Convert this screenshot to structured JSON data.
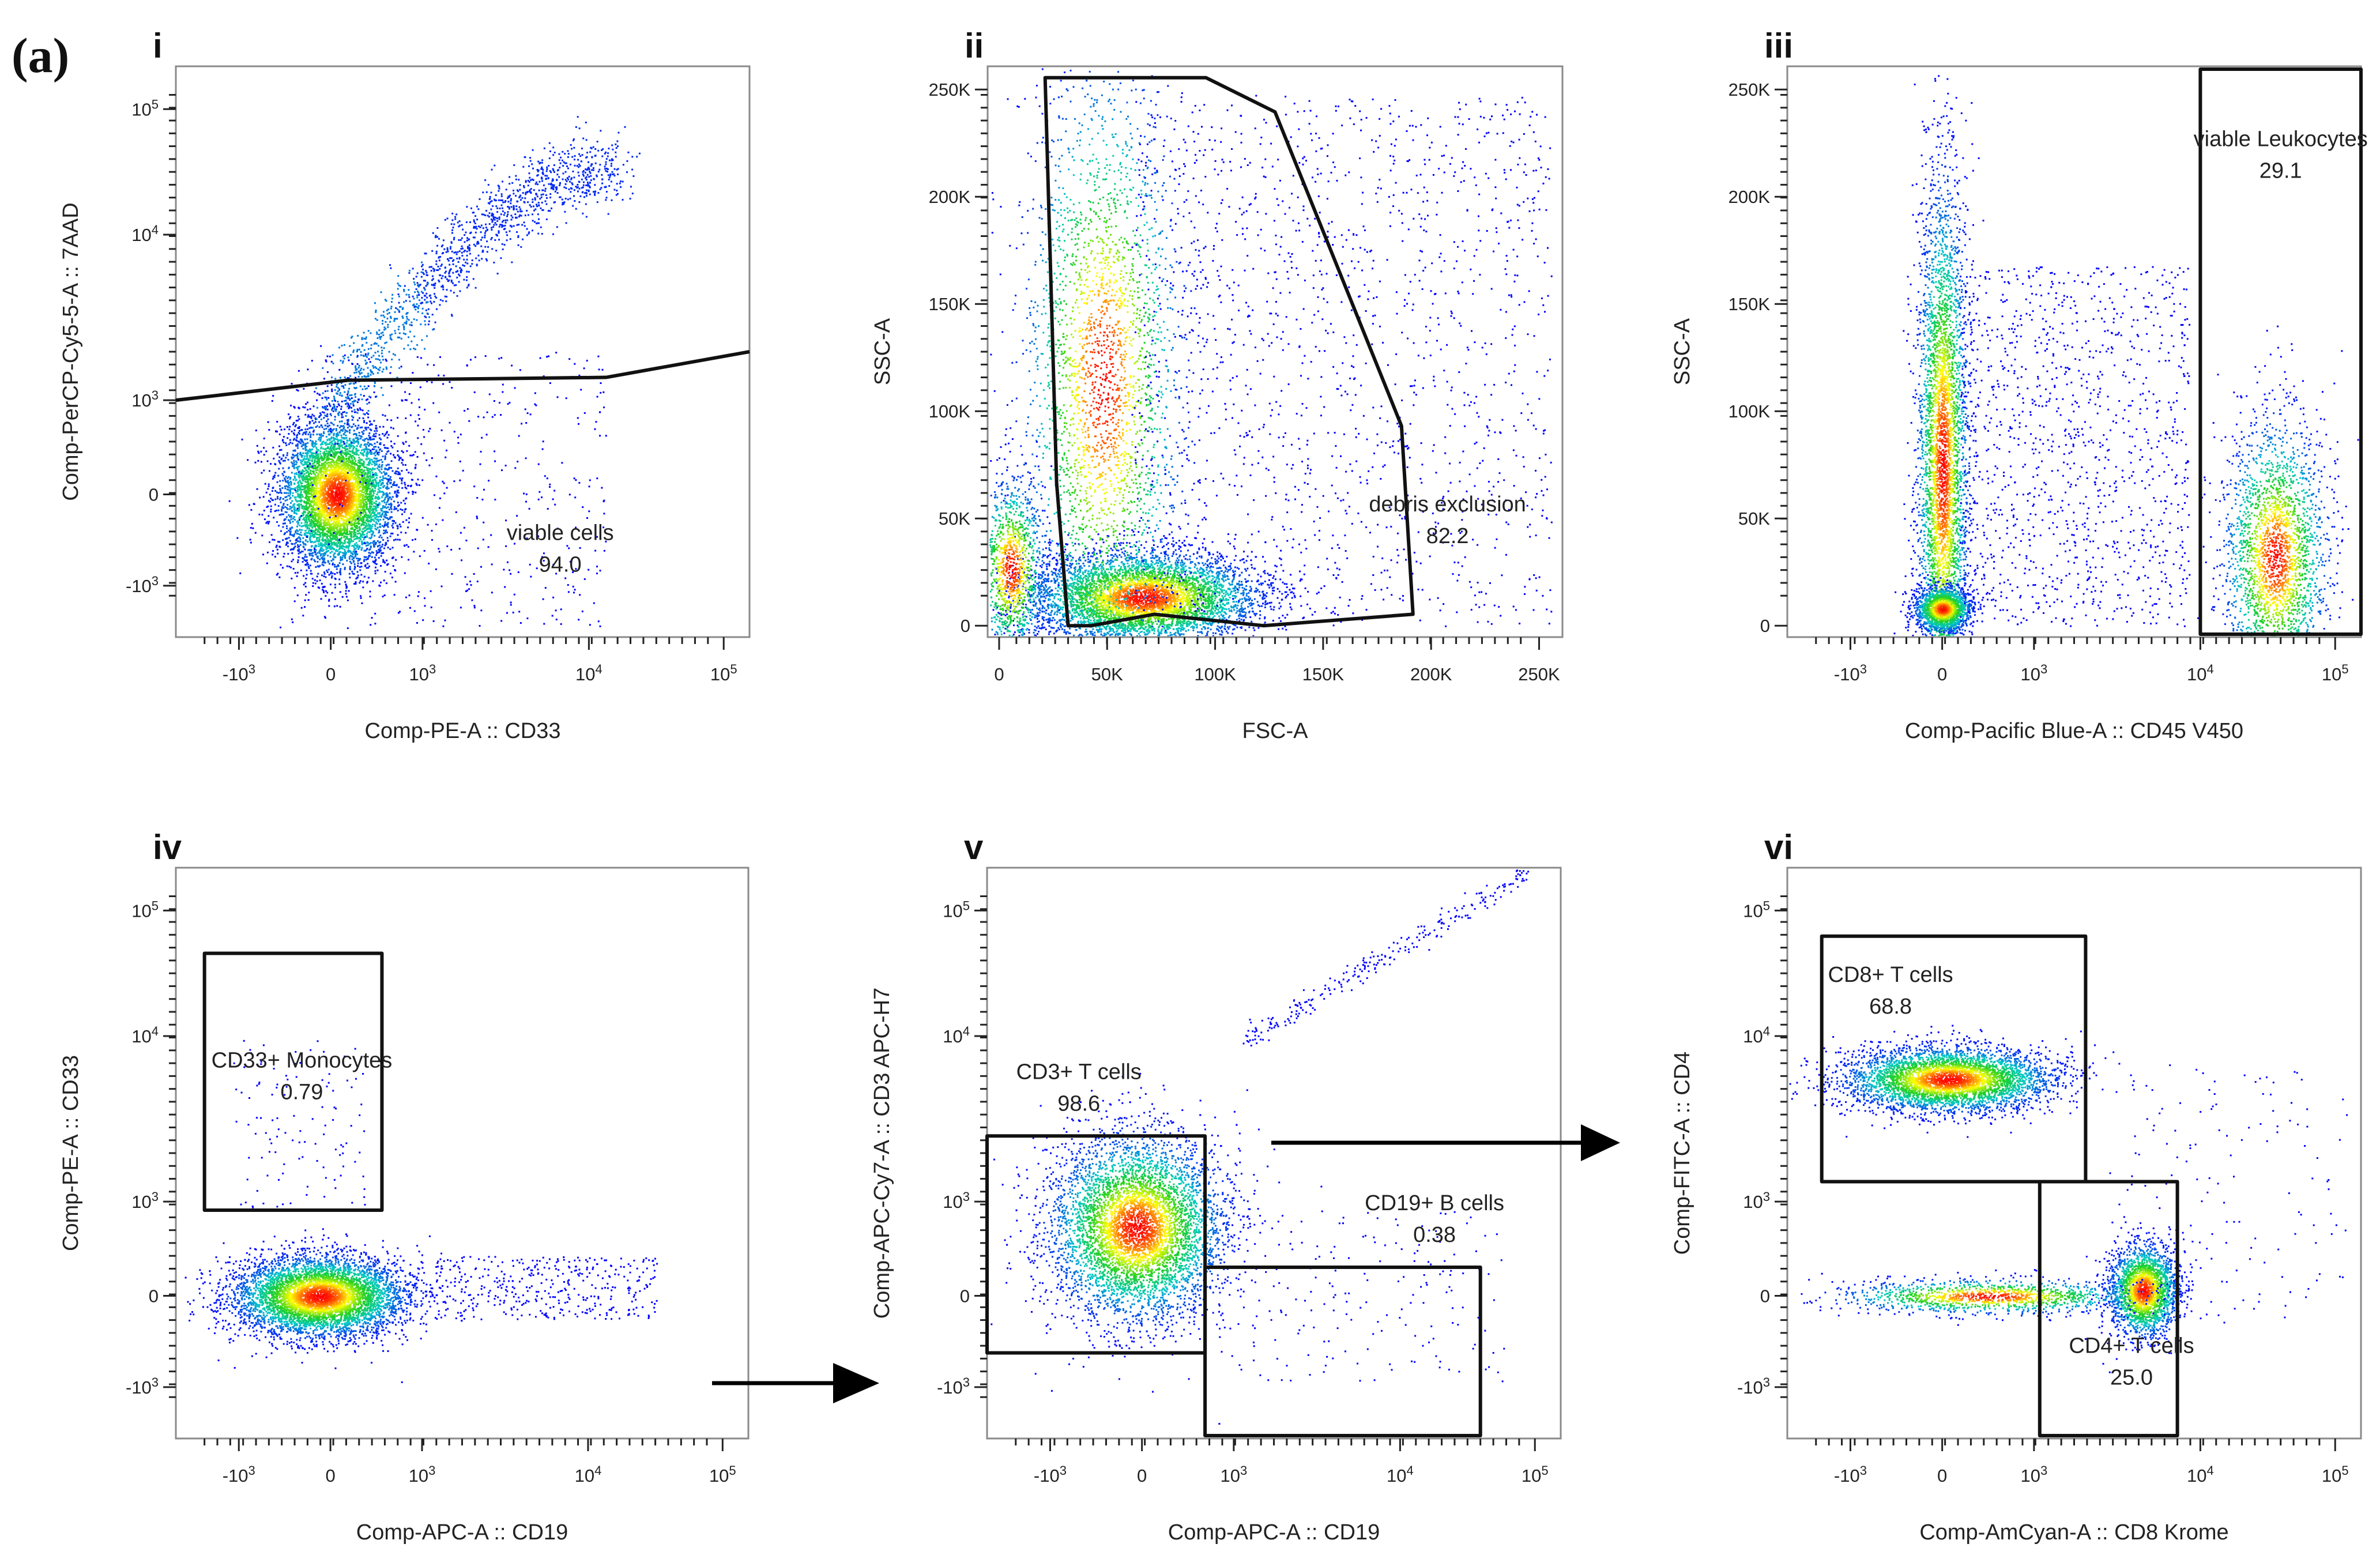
{
  "figure_label": "(a)",
  "chart_data": [
    {
      "id": "i",
      "type": "scatter",
      "panel_label": "i",
      "xlabel": "Comp-PE-A :: CD33",
      "ylabel": "Comp-PerCP-Cy5-5-A :: 7AAD",
      "x_scale": "biexponential",
      "y_scale": "biexponential",
      "x_ticks": [
        "-10^3",
        "0",
        "10^3",
        "10^4",
        "10^5"
      ],
      "y_ticks": [
        "-10^3",
        "0",
        "10^3",
        "10^4",
        "10^5"
      ],
      "populations": [
        {
          "x": [
            -0.2,
            0.2
          ],
          "y": [
            0.05,
            0.45
          ],
          "share": 0.7,
          "desc": "main cluster"
        },
        {
          "x": [
            0.1,
            2.6
          ],
          "y": [
            1.6,
            4.6
          ],
          "share": 0.3,
          "desc": "dead-cell arc"
        }
      ],
      "gates": [
        {
          "name": "viable cells",
          "value": "94.0"
        }
      ]
    },
    {
      "id": "ii",
      "type": "scatter",
      "panel_label": "ii",
      "xlabel": "FSC-A",
      "ylabel": "SSC-A",
      "x_scale": "linear",
      "y_scale": "linear",
      "x_ticks": [
        "0",
        "50K",
        "100K",
        "150K",
        "200K",
        "250K"
      ],
      "y_ticks": [
        "0",
        "50K",
        "100K",
        "150K",
        "200K",
        "250K"
      ],
      "xlim": [
        0,
        262144
      ],
      "ylim": [
        0,
        262144
      ],
      "gates": [
        {
          "name": "debris exclusion",
          "value": "82.2"
        }
      ]
    },
    {
      "id": "iii",
      "type": "scatter",
      "panel_label": "iii",
      "xlabel": "Comp-Pacific Blue-A :: CD45 V450",
      "ylabel": "SSC-A",
      "x_scale": "biexponential",
      "y_scale": "linear",
      "x_ticks": [
        "-10^3",
        "0",
        "10^3",
        "10^4",
        "10^5"
      ],
      "y_ticks": [
        "0",
        "50K",
        "100K",
        "150K",
        "200K",
        "250K"
      ],
      "gates": [
        {
          "name": "viable Leukocytes",
          "value": "29.1"
        }
      ]
    },
    {
      "id": "iv",
      "type": "scatter",
      "panel_label": "iv",
      "xlabel": "Comp-APC-A :: CD19",
      "ylabel": "Comp-PE-A :: CD33",
      "x_scale": "biexponential",
      "y_scale": "biexponential",
      "x_ticks": [
        "-10^3",
        "0",
        "10^3",
        "10^4",
        "10^5"
      ],
      "y_ticks": [
        "-10^3",
        "0",
        "10^3",
        "10^4",
        "10^5"
      ],
      "gates": [
        {
          "name": "CD33+ Monocytes",
          "value": "0.79"
        }
      ]
    },
    {
      "id": "v",
      "type": "scatter",
      "panel_label": "v",
      "xlabel": "Comp-APC-A :: CD19",
      "ylabel": "Comp-APC-Cy7-A :: CD3 APC-H7",
      "x_scale": "biexponential",
      "y_scale": "biexponential",
      "x_ticks": [
        "-10^3",
        "0",
        "10^3",
        "10^4",
        "10^5"
      ],
      "y_ticks": [
        "-10^3",
        "0",
        "10^3",
        "10^4",
        "10^5"
      ],
      "gates": [
        {
          "name": "CD3+ T cells",
          "value": "98.6"
        },
        {
          "name": "CD19+ B cells",
          "value": "0.38"
        }
      ]
    },
    {
      "id": "vi",
      "type": "scatter",
      "panel_label": "vi",
      "xlabel": "Comp-AmCyan-A :: CD8 Krome",
      "ylabel": "Comp-FITC-A :: CD4",
      "x_scale": "biexponential",
      "y_scale": "biexponential",
      "x_ticks": [
        "-10^3",
        "0",
        "10^3",
        "10^4",
        "10^5"
      ],
      "y_ticks": [
        "-10^3",
        "0",
        "10^3",
        "10^4",
        "10^5"
      ],
      "gates": [
        {
          "name": "CD8+ T cells",
          "value": "68.8"
        },
        {
          "name": "CD4+ T cells",
          "value": "25.0"
        }
      ]
    }
  ],
  "colors": {
    "density_low": "#0000ff",
    "density_mid": "#00c8c8",
    "density_mid2": "#20d020",
    "density_high": "#ffff00",
    "density_peak": "#ff0000",
    "gate": "#111111",
    "frame": "#8a8a8a"
  }
}
